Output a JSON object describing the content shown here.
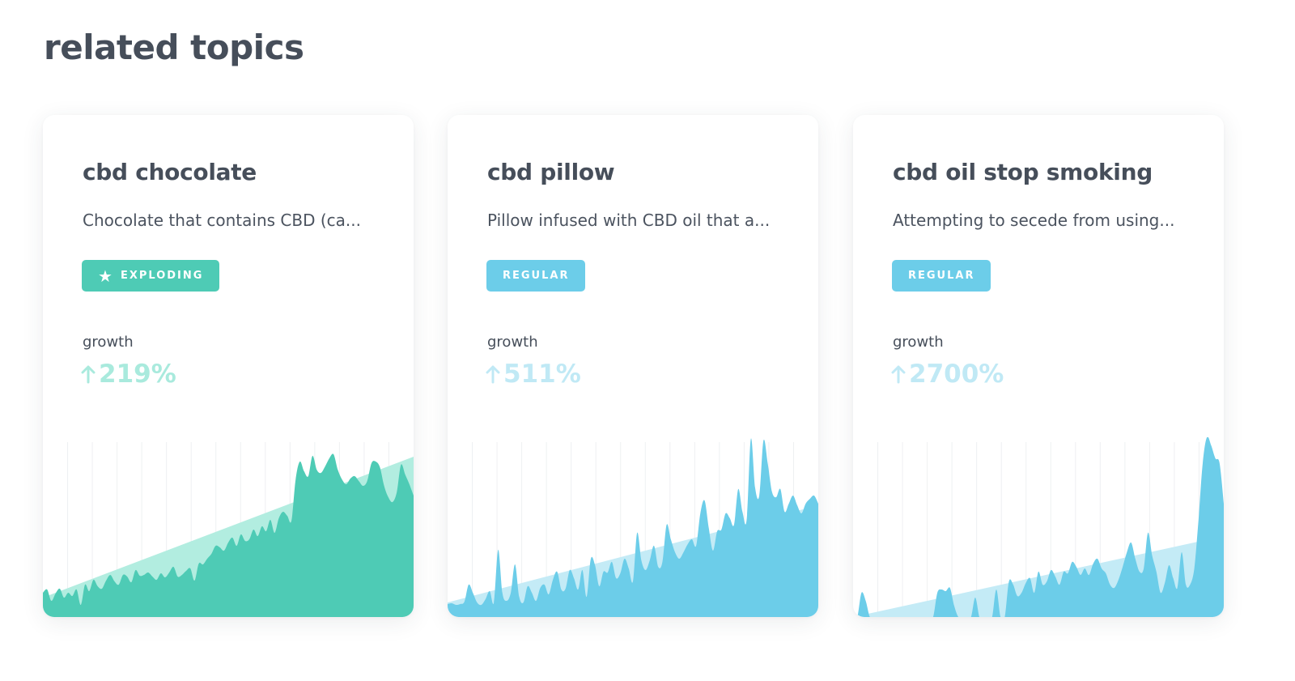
{
  "page": {
    "title": "related topics"
  },
  "colors": {
    "exploding": "#4ecbb5",
    "exploding_trend": "#b2ede0",
    "exploding_growth": "#a9eadd",
    "regular": "#6ccde9",
    "regular_trend": "#c4ebf6",
    "regular_growth": "#c0e9f5",
    "grid": "#eef0f2"
  },
  "cards": [
    {
      "title": "cbd chocolate",
      "description": "Chocolate that contains CBD (ca...",
      "badge": {
        "label": "EXPLODING",
        "icon": "star-icon",
        "type": "exploding"
      },
      "growth_label": "growth",
      "growth_value": "219%",
      "growth_icon": "arrow-up-icon",
      "chart_data": {
        "type": "area",
        "values": [
          30,
          34,
          20,
          29,
          35,
          24,
          30,
          26,
          34,
          15,
          40,
          32,
          46,
          38,
          35,
          45,
          52,
          44,
          40,
          52,
          50,
          43,
          58,
          51,
          52,
          55,
          50,
          46,
          54,
          49,
          55,
          62,
          50,
          52,
          57,
          60,
          45,
          66,
          65,
          72,
          78,
          88,
          86,
          82,
          92,
          98,
          88,
          102,
          94,
          96,
          108,
          100,
          112,
          106,
          120,
          104,
          122,
          130,
          125,
          119,
          170,
          192,
          180,
          174,
          199,
          182,
          178,
          186,
          196,
          201,
          182,
          170,
          164,
          171,
          174,
          168,
          162,
          168,
          190,
          192,
          185,
          162,
          148,
          142,
          154,
          188,
          176,
          164,
          150
        ],
        "trend": [
          24,
          198
        ],
        "ylim": [
          0,
          222
        ]
      }
    },
    {
      "title": "cbd pillow",
      "description": "Pillow infused with CBD oil that a...",
      "badge": {
        "label": "REGULAR",
        "type": "regular"
      },
      "growth_label": "growth",
      "growth_value": "511%",
      "growth_icon": "arrow-up-icon",
      "chart_data": {
        "type": "area",
        "values": [
          16,
          17,
          15,
          16,
          19,
          40,
          30,
          18,
          15,
          22,
          32,
          18,
          83,
          30,
          20,
          30,
          65,
          25,
          18,
          38,
          30,
          20,
          36,
          40,
          28,
          46,
          56,
          34,
          35,
          58,
          48,
          34,
          58,
          25,
          72,
          64,
          38,
          56,
          55,
          68,
          48,
          54,
          72,
          60,
          44,
          104,
          70,
          58,
          70,
          88,
          62,
          68,
          114,
          96,
          80,
          72,
          80,
          90,
          96,
          88,
          128,
          144,
          110,
          82,
          106,
          108,
          128,
          122,
          114,
          158,
          130,
          120,
          220,
          160,
          150,
          218,
          190,
          155,
          148,
          158,
          130,
          140,
          150,
          138,
          128,
          140,
          146,
          150,
          140
        ],
        "trend": [
          18,
          138
        ],
        "ylim": [
          0,
          222
        ]
      }
    },
    {
      "title": "cbd oil stop smoking",
      "description": "Attempting to secede from using...",
      "badge": {
        "label": "REGULAR",
        "type": "regular"
      },
      "growth_label": "growth",
      "growth_value": "2700%",
      "growth_icon": "arrow-up-icon",
      "chart_data": {
        "type": "area",
        "values": [
          0,
          0,
          30,
          20,
          0,
          0,
          0,
          0,
          0,
          0,
          0,
          0,
          0,
          0,
          0,
          0,
          0,
          0,
          0,
          0,
          30,
          34,
          32,
          36,
          14,
          0,
          0,
          0,
          0,
          24,
          0,
          0,
          0,
          0,
          34,
          0,
          0,
          44,
          40,
          26,
          30,
          42,
          48,
          30,
          56,
          40,
          44,
          58,
          50,
          40,
          56,
          54,
          68,
          62,
          52,
          60,
          52,
          66,
          72,
          60,
          54,
          40,
          36,
          46,
          62,
          80,
          92,
          72,
          56,
          60,
          104,
          76,
          56,
          30,
          42,
          64,
          48,
          36,
          80,
          40,
          40,
          60,
          120,
          190,
          222,
          212,
          196,
          190,
          140
        ],
        "trend": [
          0,
          100
        ],
        "ylim": [
          0,
          222
        ]
      }
    }
  ]
}
